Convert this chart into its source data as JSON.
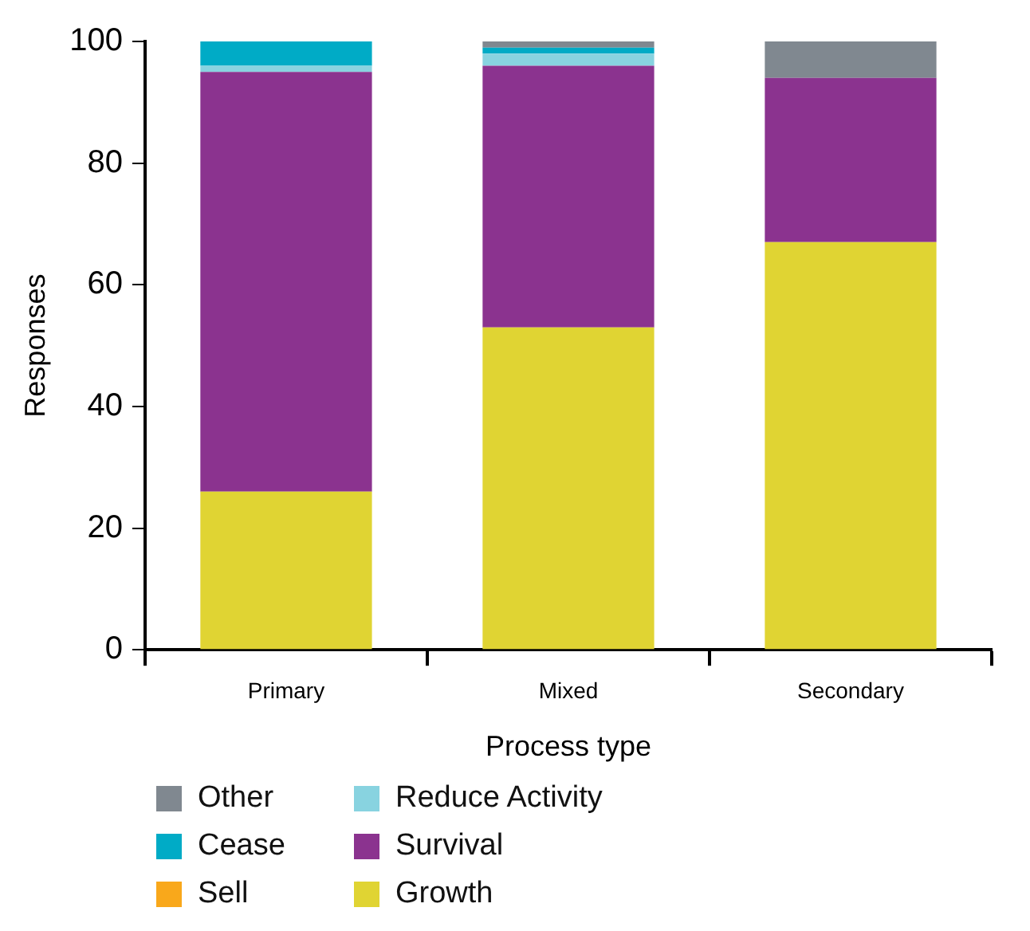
{
  "chart_data": {
    "type": "bar",
    "stacked": true,
    "xlabel": "Process type",
    "ylabel": "Responses",
    "categories": [
      "Primary",
      "Mixed",
      "Secondary"
    ],
    "series": [
      {
        "name": "Growth",
        "color": "#e0d433",
        "values": [
          26,
          53,
          67
        ]
      },
      {
        "name": "Survival",
        "color": "#8b338f",
        "values": [
          69,
          43,
          27
        ]
      },
      {
        "name": "Reduce Activity",
        "color": "#88d3e0",
        "values": [
          1,
          2,
          0
        ]
      },
      {
        "name": "Sell",
        "color": "#f9a81b",
        "values": [
          0,
          0,
          0
        ]
      },
      {
        "name": "Cease",
        "color": "#00abc6",
        "values": [
          4,
          1,
          0
        ]
      },
      {
        "name": "Other",
        "color": "#808890",
        "values": [
          0,
          1,
          6
        ]
      }
    ],
    "ylim": [
      0,
      100
    ],
    "yticks": [
      0,
      20,
      40,
      60,
      80,
      100
    ],
    "grid": false,
    "legend": "bottom"
  }
}
